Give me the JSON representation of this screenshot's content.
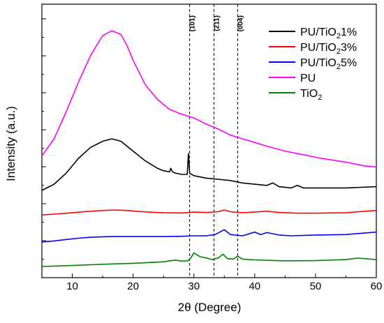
{
  "chart_data": {
    "type": "line",
    "xlabel": "2θ (Degree)",
    "ylabel": "Intensity (a.u.)",
    "xlim": [
      5,
      60
    ],
    "ylim": [
      0,
      100
    ],
    "x_ticks": [
      10,
      20,
      30,
      40,
      50,
      60
    ],
    "x_tick_labels": [
      "10",
      "20",
      "30",
      "40",
      "50",
      "60"
    ],
    "y_tick_labels_visible": false,
    "grid": false,
    "legend_position": "top-right",
    "reference_lines": [
      {
        "x": 29.3,
        "label": "(101)"
      },
      {
        "x": 33.3,
        "label": "(211)"
      },
      {
        "x": 37.2,
        "label": "(004)"
      }
    ],
    "series": [
      {
        "name": "PU/TiO2 1%",
        "legend_main": "PU/TiO",
        "legend_sub": "2",
        "legend_tail": "1%",
        "color": "#000000",
        "points": [
          [
            5,
            31
          ],
          [
            7,
            33.5
          ],
          [
            9,
            38
          ],
          [
            11,
            44
          ],
          [
            13,
            48.5
          ],
          [
            15,
            51
          ],
          [
            16.5,
            52
          ],
          [
            18,
            51
          ],
          [
            20,
            47
          ],
          [
            22,
            43
          ],
          [
            24,
            40
          ],
          [
            25,
            39
          ],
          [
            26,
            38.5
          ],
          [
            26.2,
            40
          ],
          [
            26.5,
            38.5
          ],
          [
            27,
            38
          ],
          [
            28,
            37.5
          ],
          [
            28.9,
            37.5
          ],
          [
            29.1,
            46
          ],
          [
            29.3,
            38
          ],
          [
            30,
            37
          ],
          [
            32,
            36
          ],
          [
            34,
            35.5
          ],
          [
            36,
            35
          ],
          [
            38,
            34
          ],
          [
            40,
            33.5
          ],
          [
            42,
            33
          ],
          [
            43,
            34
          ],
          [
            44,
            32.5
          ],
          [
            46,
            32
          ],
          [
            47,
            33
          ],
          [
            48,
            32
          ],
          [
            50,
            32
          ],
          [
            55,
            32
          ],
          [
            60,
            32.5
          ]
        ]
      },
      {
        "name": "PU/TiO2 3%",
        "legend_main": "PU/TiO",
        "legend_sub": "2",
        "legend_tail": "3%",
        "color": "#ff0000",
        "points": [
          [
            5,
            21
          ],
          [
            7,
            21.3
          ],
          [
            9,
            21.7
          ],
          [
            11,
            22.1
          ],
          [
            13,
            22.5
          ],
          [
            15,
            22.8
          ],
          [
            17,
            23
          ],
          [
            19,
            22.8
          ],
          [
            21,
            22.4
          ],
          [
            23,
            22.1
          ],
          [
            25,
            21.9
          ],
          [
            28,
            21.8
          ],
          [
            30,
            22.2
          ],
          [
            32,
            22
          ],
          [
            34,
            22.3
          ],
          [
            35,
            23
          ],
          [
            36,
            22.3
          ],
          [
            38,
            21.9
          ],
          [
            40,
            22.2
          ],
          [
            42,
            22.5
          ],
          [
            44,
            22
          ],
          [
            47,
            21.7
          ],
          [
            50,
            21.7
          ],
          [
            55,
            21.9
          ],
          [
            60,
            22.8
          ]
        ]
      },
      {
        "name": "PU/TiO2 5%",
        "legend_main": "PU/TiO",
        "legend_sub": "2",
        "legend_tail": "5%",
        "color": "#0000ff",
        "points": [
          [
            5,
            10
          ],
          [
            7,
            10.4
          ],
          [
            9,
            11
          ],
          [
            11,
            11.5
          ],
          [
            13,
            11.9
          ],
          [
            15,
            12.1
          ],
          [
            17,
            12.2
          ],
          [
            20,
            12.2
          ],
          [
            25,
            12.2
          ],
          [
            28,
            12.3
          ],
          [
            30,
            12.5
          ],
          [
            32,
            12.5
          ],
          [
            33.5,
            13
          ],
          [
            35,
            15
          ],
          [
            36,
            13
          ],
          [
            38,
            12.5
          ],
          [
            40,
            14
          ],
          [
            41,
            13
          ],
          [
            42,
            13.8
          ],
          [
            44,
            12.8
          ],
          [
            46,
            12.5
          ],
          [
            50,
            12.8
          ],
          [
            55,
            13
          ],
          [
            60,
            14
          ]
        ]
      },
      {
        "name": "PU",
        "legend_main": "PU",
        "legend_sub": "",
        "legend_tail": "",
        "color": "#ff00ff",
        "points": [
          [
            5,
            45
          ],
          [
            7,
            52
          ],
          [
            9,
            63
          ],
          [
            11,
            75
          ],
          [
            13,
            86
          ],
          [
            15,
            94
          ],
          [
            16.5,
            96
          ],
          [
            18,
            94.5
          ],
          [
            19,
            90
          ],
          [
            20,
            84
          ],
          [
            22,
            74
          ],
          [
            24,
            68
          ],
          [
            26,
            64
          ],
          [
            28,
            62
          ],
          [
            30,
            60.5
          ],
          [
            32,
            58
          ],
          [
            34,
            56
          ],
          [
            36,
            53.5
          ],
          [
            38,
            52
          ],
          [
            40,
            50.5
          ],
          [
            42,
            49
          ],
          [
            45,
            47
          ],
          [
            48,
            45.5
          ],
          [
            51,
            44
          ],
          [
            55,
            42.5
          ],
          [
            58,
            41
          ],
          [
            60,
            40.5
          ]
        ]
      },
      {
        "name": "TiO2",
        "legend_main": "TiO",
        "legend_sub": "2",
        "legend_tail": "",
        "color": "#008000",
        "points": [
          [
            5,
            0
          ],
          [
            10,
            0.4
          ],
          [
            15,
            0.9
          ],
          [
            20,
            1.3
          ],
          [
            25,
            1.9
          ],
          [
            26,
            2.3
          ],
          [
            27,
            2.6
          ],
          [
            28,
            2.2
          ],
          [
            29,
            2.3
          ],
          [
            29.5,
            3.5
          ],
          [
            30,
            5.5
          ],
          [
            31,
            4
          ],
          [
            32,
            3.5
          ],
          [
            33,
            2.8
          ],
          [
            34,
            3.5
          ],
          [
            34.8,
            5
          ],
          [
            35.5,
            3.2
          ],
          [
            36.5,
            3
          ],
          [
            37.2,
            4.2
          ],
          [
            38,
            3
          ],
          [
            40,
            2.7
          ],
          [
            45,
            2.3
          ],
          [
            50,
            2.4
          ],
          [
            55,
            2.8
          ],
          [
            57,
            3.4
          ],
          [
            60,
            2.8
          ]
        ]
      }
    ]
  }
}
